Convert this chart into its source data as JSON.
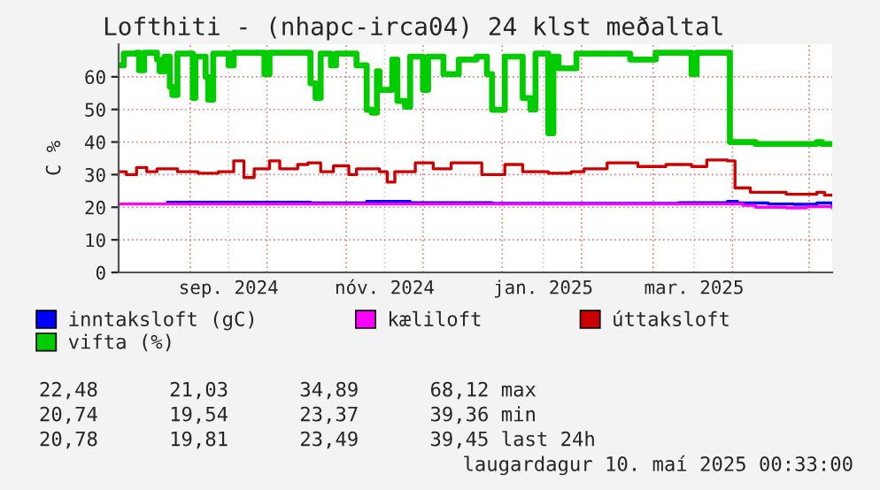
{
  "chart_data": {
    "type": "step",
    "title": "Lofthiti - (nhapc-irca04) 24 klst meðaltal",
    "ylabel": "C %",
    "xlim": [
      "2024-08-04",
      "2025-05-10"
    ],
    "xticks": [
      {
        "value": "2024-09-01",
        "label": null
      },
      {
        "value": "2024-09-16",
        "label": "sep. 2024"
      },
      {
        "value": "2024-10-01",
        "label": null
      },
      {
        "value": "2024-11-01",
        "label": null
      },
      {
        "value": "2024-11-16",
        "label": "nóv. 2024"
      },
      {
        "value": "2024-12-01",
        "label": null
      },
      {
        "value": "2025-01-01",
        "label": null
      },
      {
        "value": "2025-01-17",
        "label": "jan. 2025"
      },
      {
        "value": "2025-02-01",
        "label": null
      },
      {
        "value": "2025-03-01",
        "label": null
      },
      {
        "value": "2025-03-17",
        "label": "mar. 2025"
      },
      {
        "value": "2025-04-01",
        "label": null
      },
      {
        "value": "2025-05-01",
        "label": null
      }
    ],
    "ylim": [
      0,
      70
    ],
    "yticks": [
      0,
      10,
      20,
      30,
      40,
      50,
      60
    ],
    "grid": true,
    "legend": "bottom",
    "series": [
      {
        "name": "inntaksloft (gC)",
        "color": "#0000ff",
        "x": [
          "2024-08-23",
          "2024-10-01",
          "2024-10-18",
          "2024-11-09",
          "2024-11-26",
          "2024-12-28",
          "2025-03-11",
          "2025-03-30",
          "2025-04-03",
          "2025-04-15",
          "2025-04-25",
          "2025-05-04",
          "2025-05-10"
        ],
        "values": [
          21.5,
          21.5,
          21.3,
          21.8,
          21.4,
          21.2,
          21.4,
          21.8,
          21.3,
          21.0,
          20.9,
          21.3,
          20.8
        ]
      },
      {
        "name": "kæliloft",
        "color": "#ff00ff",
        "x": [
          "2024-08-04",
          "2025-03-30",
          "2025-04-05",
          "2025-04-10",
          "2025-04-22",
          "2025-04-30",
          "2025-05-10"
        ],
        "values": [
          21.0,
          21.0,
          20.6,
          20.0,
          19.8,
          20.2,
          19.8
        ]
      },
      {
        "name": "úttaksloft",
        "color": "#cc0000",
        "x": [
          "2024-08-04",
          "2024-08-07",
          "2024-08-11",
          "2024-08-15",
          "2024-08-19",
          "2024-08-27",
          "2024-09-04",
          "2024-09-12",
          "2024-09-18",
          "2024-09-22",
          "2024-09-26",
          "2024-10-02",
          "2024-10-06",
          "2024-10-13",
          "2024-10-17",
          "2024-10-22",
          "2024-10-27",
          "2024-11-02",
          "2024-11-05",
          "2024-11-14",
          "2024-11-17",
          "2024-11-20",
          "2024-11-28",
          "2024-12-05",
          "2024-12-12",
          "2024-12-24",
          "2025-01-02",
          "2025-01-09",
          "2025-01-19",
          "2025-01-28",
          "2025-02-02",
          "2025-02-11",
          "2025-02-23",
          "2025-03-06",
          "2025-03-16",
          "2025-03-22",
          "2025-03-30",
          "2025-04-02",
          "2025-04-08",
          "2025-04-22",
          "2025-05-04",
          "2025-05-07",
          "2025-05-10"
        ],
        "values": [
          30.9,
          30.0,
          32.2,
          30.9,
          31.8,
          30.9,
          30.4,
          30.9,
          34.2,
          29.1,
          31.8,
          34.2,
          31.8,
          33.1,
          33.6,
          30.9,
          32.7,
          30.0,
          31.8,
          30.9,
          27.7,
          30.9,
          33.6,
          31.8,
          33.6,
          30.0,
          33.1,
          30.9,
          30.4,
          30.9,
          31.8,
          33.6,
          32.5,
          33.1,
          32.5,
          34.5,
          34.2,
          25.9,
          24.6,
          24.0,
          24.6,
          23.7,
          23.7
        ]
      },
      {
        "name": "vifta (%)",
        "color": "#00cc00",
        "x": [
          "2024-08-04",
          "2024-08-06",
          "2024-08-11",
          "2024-08-12",
          "2024-08-14",
          "2024-08-19",
          "2024-08-20",
          "2024-08-22",
          "2024-08-24",
          "2024-08-25",
          "2024-08-27",
          "2024-09-02",
          "2024-09-03",
          "2024-09-07",
          "2024-09-08",
          "2024-09-10",
          "2024-09-16",
          "2024-09-18",
          "2024-09-30",
          "2024-10-02",
          "2024-10-16",
          "2024-10-18",
          "2024-10-20",
          "2024-10-22",
          "2024-10-26",
          "2024-10-28",
          "2024-11-05",
          "2024-11-09",
          "2024-11-11",
          "2024-11-13",
          "2024-11-14",
          "2024-11-19",
          "2024-11-21",
          "2024-11-24",
          "2024-11-26",
          "2024-12-01",
          "2024-12-03",
          "2024-12-09",
          "2024-12-15",
          "2024-12-22",
          "2024-12-26",
          "2024-12-28",
          "2025-01-02",
          "2025-01-07",
          "2025-01-09",
          "2025-01-12",
          "2025-01-14",
          "2025-01-19",
          "2025-01-21",
          "2025-01-23",
          "2025-01-30",
          "2025-02-20",
          "2025-03-02",
          "2025-03-16",
          "2025-03-18",
          "2025-03-31",
          "2025-04-10",
          "2025-05-04",
          "2025-05-06",
          "2025-05-10"
        ],
        "values": [
          63.5,
          67.1,
          67.4,
          62.0,
          67.4,
          65.3,
          61.7,
          66.2,
          57.0,
          54.4,
          67.1,
          53.5,
          66.2,
          60.0,
          53.0,
          67.1,
          63.5,
          67.4,
          60.8,
          67.4,
          67.4,
          58.0,
          53.5,
          67.1,
          63.5,
          67.1,
          63.5,
          49.9,
          49.0,
          61.7,
          56.0,
          65.3,
          52.6,
          50.8,
          66.2,
          56.0,
          66.2,
          60.8,
          65.3,
          66.2,
          60.8,
          49.9,
          66.2,
          66.2,
          53.5,
          50.0,
          67.1,
          42.7,
          66.2,
          62.6,
          67.1,
          65.3,
          67.4,
          60.8,
          67.4,
          40.0,
          39.4,
          40.0,
          39.4,
          39.4
        ]
      }
    ],
    "annotations": [
      "22,48      21,03      34,89      68,12 max",
      "20,74      19,54      23,37      39,36 min",
      "20,78      19,81      23,49      39,45 last 24h",
      "laugardagur 10. maí 2025 00:33:00"
    ]
  }
}
